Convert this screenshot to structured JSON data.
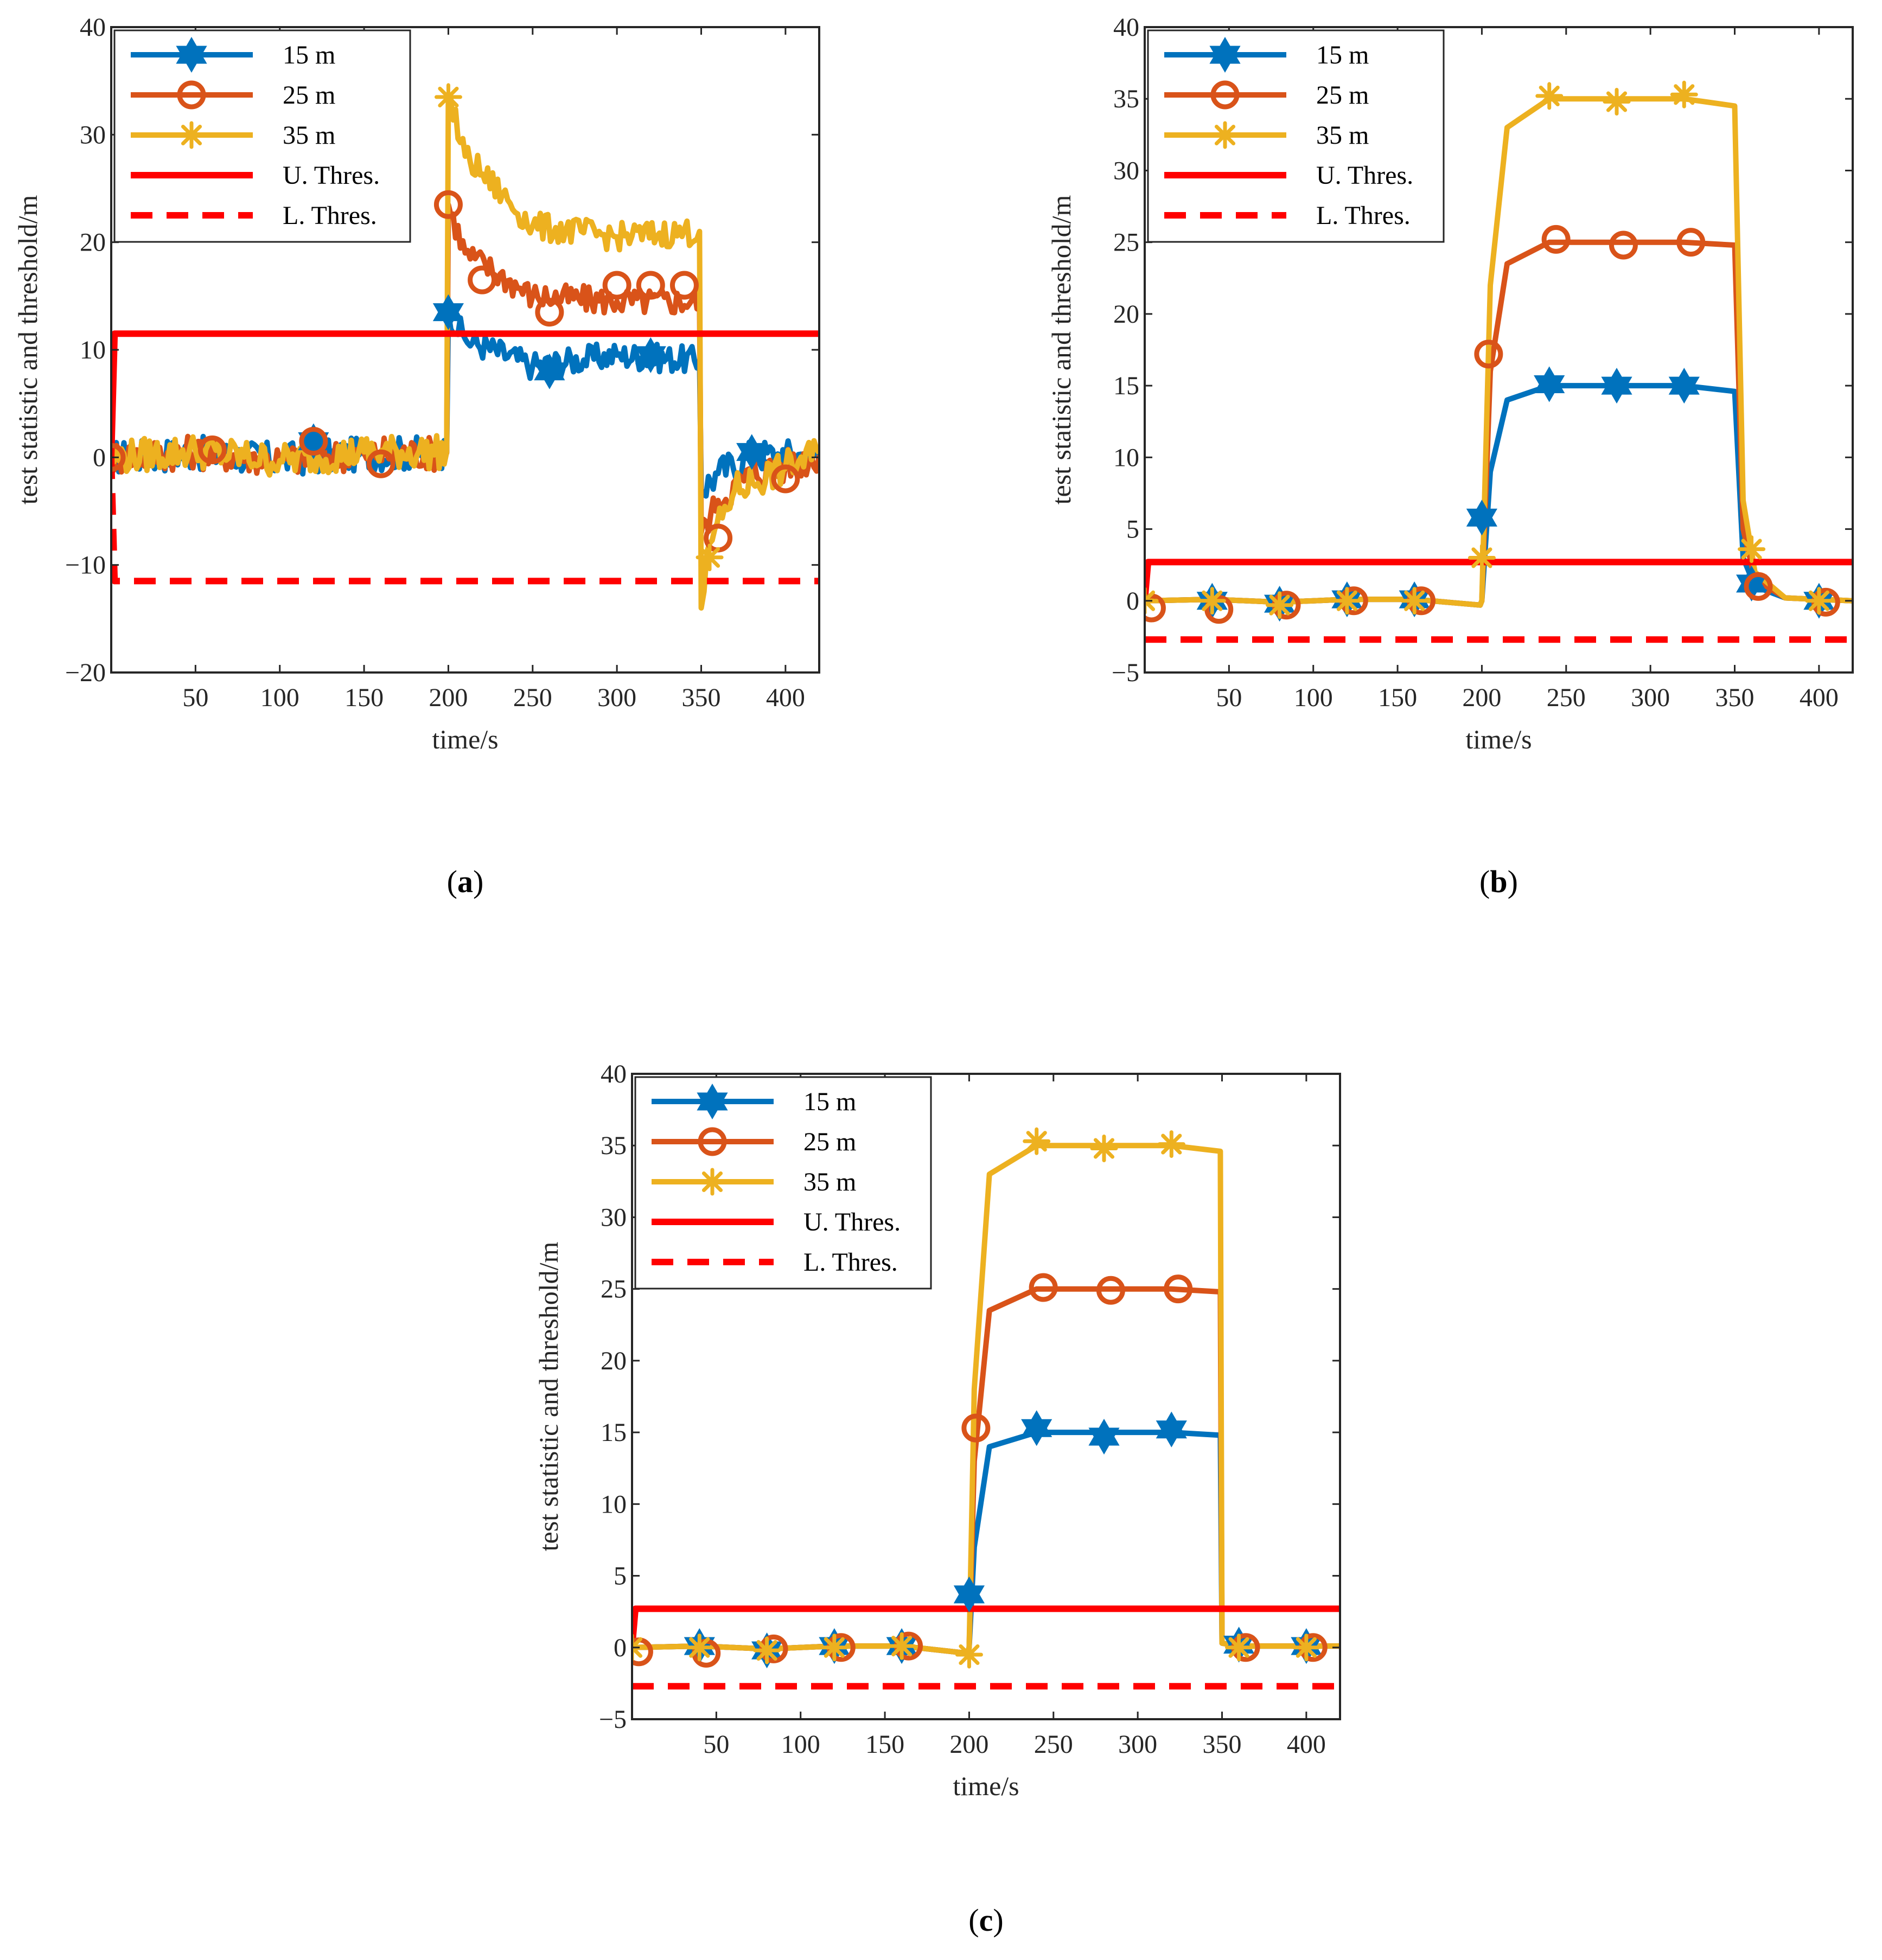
{
  "chart_data": [
    {
      "type": "line",
      "panel_label": "a",
      "caption_paren_open": "(",
      "caption_paren_close": ")",
      "xlabel": "time/s",
      "ylabel": "test statistic and threshold/m",
      "xlim": [
        0,
        420
      ],
      "ylim": [
        -20,
        40
      ],
      "xticks": [
        "50",
        "100",
        "150",
        "200",
        "250",
        "300",
        "350",
        "400"
      ],
      "yticks": [
        "−20",
        "−10",
        "0",
        "10",
        "20",
        "30",
        "40"
      ],
      "legend_position": "top-left",
      "colors": {
        "s15": "#0072BD",
        "s25": "#D95319",
        "s35": "#EDB120",
        "threshold": "#FF0000"
      },
      "series": [
        {
          "name": "15 m",
          "marker": "hexagram",
          "color": "#0072BD",
          "x": [
            0,
            50,
            100,
            150,
            199,
            200,
            210,
            250,
            300,
            349,
            350,
            360,
            380,
            400,
            420
          ],
          "y": [
            0,
            0.4,
            -0.2,
            0.3,
            0.5,
            13.5,
            11,
            8.5,
            9.5,
            9,
            -3,
            -1.5,
            0.2,
            0.2,
            0.3
          ],
          "markers_x": [
            120,
            200,
            260,
            320,
            380
          ],
          "markers_y": [
            1.5,
            13.5,
            8,
            9.5,
            0.5
          ]
        },
        {
          "name": "25 m",
          "marker": "circle",
          "color": "#D95319",
          "x": [
            0,
            50,
            100,
            150,
            199,
            200,
            210,
            250,
            300,
            349,
            350,
            360,
            380,
            400,
            420
          ],
          "y": [
            0,
            0.5,
            -0.2,
            0.4,
            0.4,
            23.5,
            19,
            15,
            14.5,
            14.5,
            -7,
            -4,
            -1.5,
            -0.8,
            0.2
          ],
          "markers_x": [
            0,
            60,
            120,
            160,
            200,
            220,
            260,
            300,
            320,
            340,
            360,
            400
          ],
          "markers_y": [
            0,
            0.7,
            1.5,
            -0.6,
            23.5,
            16.5,
            13.5,
            16,
            16,
            16,
            -7.5,
            -2
          ],
          "marker_gap": true
        },
        {
          "name": "35 m",
          "marker": "asterisk",
          "color": "#EDB120",
          "x": [
            0,
            50,
            100,
            150,
            199,
            200,
            210,
            250,
            300,
            349,
            350,
            355,
            370,
            400,
            420
          ],
          "y": [
            0,
            0.6,
            -0.3,
            0.5,
            0.5,
            33.5,
            28,
            21.5,
            20.5,
            21,
            -14,
            -8,
            -3,
            -1,
            0.4
          ],
          "markers_x": [
            200,
            355
          ],
          "markers_y": [
            33.5,
            -9.3
          ]
        },
        {
          "name": "U. Thres.",
          "style": "solid",
          "color": "#FF0000",
          "x": [
            0,
            2,
            420
          ],
          "y": [
            0,
            11.5,
            11.5
          ]
        },
        {
          "name": "L. Thres.",
          "style": "dashed",
          "color": "#FF0000",
          "x": [
            0,
            2,
            420
          ],
          "y": [
            0,
            -11.5,
            -11.5
          ]
        }
      ]
    },
    {
      "type": "line",
      "panel_label": "b",
      "caption_paren_open": "(",
      "caption_paren_close": ")",
      "xlabel": "time/s",
      "ylabel": "test statistic and threshold/m",
      "xlim": [
        0,
        420
      ],
      "ylim": [
        -5,
        40
      ],
      "xticks": [
        "50",
        "100",
        "150",
        "200",
        "250",
        "300",
        "350",
        "400"
      ],
      "yticks": [
        "−5",
        "0",
        "5",
        "10",
        "15",
        "20",
        "25",
        "30",
        "35",
        "40"
      ],
      "legend_position": "top-left",
      "colors": {
        "s15": "#0072BD",
        "s25": "#D95319",
        "s35": "#EDB120",
        "threshold": "#FF0000"
      },
      "series": [
        {
          "name": "15 m",
          "marker": "hexagram",
          "color": "#0072BD",
          "x": [
            0,
            40,
            80,
            120,
            160,
            199,
            200,
            205,
            215,
            240,
            280,
            320,
            350,
            355,
            362,
            380,
            420
          ],
          "y": [
            0,
            0.1,
            -0.1,
            0.1,
            0.1,
            -0.3,
            0,
            9,
            14,
            15,
            15,
            15,
            14.6,
            3,
            1,
            0.2,
            0
          ],
          "markers_x": [
            40,
            80,
            120,
            160,
            200,
            240,
            280,
            320,
            360,
            400
          ],
          "markers_y": [
            0,
            -0.2,
            0.1,
            0.1,
            5.8,
            15.1,
            15,
            15,
            1.2,
            0
          ]
        },
        {
          "name": "25 m",
          "marker": "circle",
          "color": "#D95319",
          "x": [
            0,
            40,
            80,
            120,
            160,
            199,
            200,
            205,
            215,
            240,
            280,
            320,
            350,
            355,
            362,
            380,
            420
          ],
          "y": [
            0,
            0.1,
            -0.1,
            0.1,
            0.1,
            -0.3,
            0,
            16,
            23.5,
            25,
            25,
            25,
            24.8,
            5,
            1.5,
            0.2,
            0
          ],
          "markers_x": [
            4,
            44,
            84,
            124,
            164,
            204,
            244,
            284,
            324,
            364,
            404
          ],
          "markers_y": [
            -0.5,
            -0.6,
            -0.3,
            0,
            0,
            17.2,
            25.2,
            24.8,
            25,
            1,
            -0.1
          ]
        },
        {
          "name": "35 m",
          "marker": "asterisk",
          "color": "#EDB120",
          "x": [
            0,
            40,
            80,
            120,
            160,
            199,
            200,
            205,
            215,
            240,
            280,
            320,
            350,
            355,
            362,
            380,
            420
          ],
          "y": [
            0,
            0.1,
            -0.1,
            0.1,
            0.1,
            -0.3,
            0,
            22,
            33,
            35,
            35,
            35,
            34.5,
            7,
            2,
            0.2,
            0
          ],
          "markers_x": [
            0,
            40,
            80,
            120,
            160,
            200,
            240,
            280,
            320,
            360,
            400
          ],
          "markers_y": [
            0,
            0,
            -0.3,
            0,
            0,
            3,
            35.2,
            34.8,
            35.3,
            3.6,
            0
          ]
        },
        {
          "name": "U. Thres.",
          "style": "solid",
          "color": "#FF0000",
          "x": [
            0,
            2,
            420
          ],
          "y": [
            0,
            2.7,
            2.7
          ]
        },
        {
          "name": "L. Thres.",
          "style": "dashed",
          "color": "#FF0000",
          "x": [
            0,
            420
          ],
          "y": [
            -2.7,
            -2.7
          ]
        }
      ]
    },
    {
      "type": "line",
      "panel_label": "c",
      "caption_paren_open": "(",
      "caption_paren_close": ")",
      "xlabel": "time/s",
      "ylabel": "test statistic and threshold/m",
      "xlim": [
        0,
        420
      ],
      "ylim": [
        -5,
        40
      ],
      "xticks": [
        "50",
        "100",
        "150",
        "200",
        "250",
        "300",
        "350",
        "400"
      ],
      "yticks": [
        "−5",
        "0",
        "5",
        "10",
        "15",
        "20",
        "25",
        "30",
        "35",
        "40"
      ],
      "legend_position": "top-left",
      "colors": {
        "s15": "#0072BD",
        "s25": "#D95319",
        "s35": "#EDB120",
        "threshold": "#FF0000"
      },
      "series": [
        {
          "name": "15 m",
          "marker": "hexagram",
          "color": "#0072BD",
          "x": [
            0,
            40,
            80,
            120,
            160,
            199,
            200,
            203,
            212,
            240,
            280,
            320,
            349,
            350,
            360,
            400,
            420
          ],
          "y": [
            0,
            0.1,
            -0.1,
            0.1,
            0.1,
            -0.4,
            0,
            7,
            14,
            15,
            15,
            15,
            14.8,
            0.3,
            0.1,
            0.1,
            0.1
          ],
          "markers_x": [
            40,
            80,
            120,
            160,
            200,
            240,
            280,
            320,
            360,
            400
          ],
          "markers_y": [
            0.1,
            -0.2,
            0.1,
            0.1,
            3.7,
            15.3,
            14.7,
            15.2,
            0.2,
            0.1
          ]
        },
        {
          "name": "25 m",
          "marker": "circle",
          "color": "#D95319",
          "x": [
            0,
            40,
            80,
            120,
            160,
            199,
            200,
            203,
            212,
            240,
            280,
            320,
            349,
            350,
            360,
            400,
            420
          ],
          "y": [
            0,
            0.1,
            -0.1,
            0.1,
            0.1,
            -0.4,
            0,
            13,
            23.5,
            25,
            25,
            25,
            24.8,
            0.3,
            0.1,
            0.1,
            0.1
          ],
          "markers_x": [
            4,
            44,
            84,
            124,
            164,
            204,
            244,
            284,
            324,
            364,
            404
          ],
          "markers_y": [
            -0.3,
            -0.4,
            -0.1,
            0,
            0.1,
            15.3,
            25.1,
            24.9,
            25,
            0,
            0
          ]
        },
        {
          "name": "35 m",
          "marker": "asterisk",
          "color": "#EDB120",
          "x": [
            0,
            40,
            80,
            120,
            160,
            199,
            200,
            203,
            212,
            240,
            280,
            320,
            349,
            350,
            360,
            400,
            420
          ],
          "y": [
            0,
            0.1,
            -0.1,
            0.1,
            0.1,
            -0.4,
            0,
            18,
            33,
            35,
            35,
            35,
            34.6,
            0.3,
            0.1,
            0.1,
            0.1
          ],
          "markers_x": [
            0,
            40,
            80,
            120,
            160,
            200,
            240,
            280,
            320,
            360,
            400
          ],
          "markers_y": [
            0,
            0,
            -0.2,
            0,
            0.1,
            -0.5,
            35.3,
            34.8,
            35.1,
            0,
            0
          ]
        },
        {
          "name": "U. Thres.",
          "style": "solid",
          "color": "#FF0000",
          "x": [
            0,
            2,
            420
          ],
          "y": [
            0,
            2.7,
            2.7
          ]
        },
        {
          "name": "L. Thres.",
          "style": "dashed",
          "color": "#FF0000",
          "x": [
            0,
            420
          ],
          "y": [
            -2.7,
            -2.7
          ]
        }
      ]
    }
  ]
}
